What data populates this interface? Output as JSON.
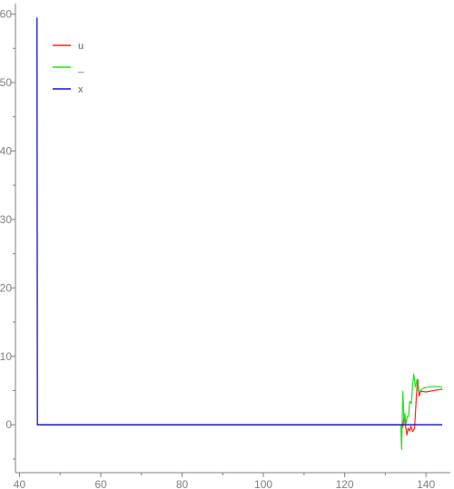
{
  "chart_data": {
    "type": "line",
    "title": "",
    "xlabel": "",
    "ylabel": "",
    "xlim": [
      39,
      146
    ],
    "ylim": [
      -7,
      61
    ],
    "x_ticks": [
      40,
      60,
      80,
      100,
      120,
      140
    ],
    "y_ticks": [
      0,
      10,
      20,
      30,
      40,
      50,
      60
    ],
    "grid": false,
    "legend_position": "top-left",
    "series": [
      {
        "name": "u",
        "color": "#ff2020",
        "points": [
          [
            44.3,
            0
          ],
          [
            44.6,
            0
          ],
          [
            134.0,
            0
          ],
          [
            134.3,
            -0.4
          ],
          [
            134.6,
            1.3
          ],
          [
            135.0,
            -0.3
          ],
          [
            135.3,
            -1.5
          ],
          [
            135.6,
            -0.5
          ],
          [
            136.0,
            -0.9
          ],
          [
            136.3,
            -0.2
          ],
          [
            136.7,
            -1.0
          ],
          [
            137.2,
            -0.5
          ],
          [
            137.7,
            4.8
          ],
          [
            138.0,
            6.6
          ],
          [
            138.3,
            4.2
          ],
          [
            138.7,
            4.9
          ],
          [
            140.0,
            4.8
          ],
          [
            142.0,
            5.0
          ],
          [
            144.0,
            5.2
          ]
        ]
      },
      {
        "name": "_",
        "color": "#20e020",
        "points": [
          [
            44.3,
            0
          ],
          [
            44.6,
            0
          ],
          [
            133.8,
            0
          ],
          [
            134.0,
            -3.6
          ],
          [
            134.3,
            4.9
          ],
          [
            134.6,
            0.6
          ],
          [
            134.8,
            1.6
          ],
          [
            135.1,
            0.2
          ],
          [
            135.4,
            1.2
          ],
          [
            135.7,
            1.2
          ],
          [
            136.0,
            3.4
          ],
          [
            136.4,
            3.1
          ],
          [
            136.7,
            5.8
          ],
          [
            137.0,
            7.4
          ],
          [
            137.4,
            5.5
          ],
          [
            137.8,
            6.6
          ],
          [
            138.1,
            5.0
          ],
          [
            138.6,
            5.0
          ],
          [
            139.5,
            5.4
          ],
          [
            142.0,
            5.6
          ],
          [
            144.0,
            5.5
          ]
        ]
      },
      {
        "name": "x",
        "color": "#1010c0",
        "points": [
          [
            44.3,
            59.5
          ],
          [
            44.4,
            0
          ],
          [
            144.0,
            0
          ]
        ]
      }
    ]
  }
}
